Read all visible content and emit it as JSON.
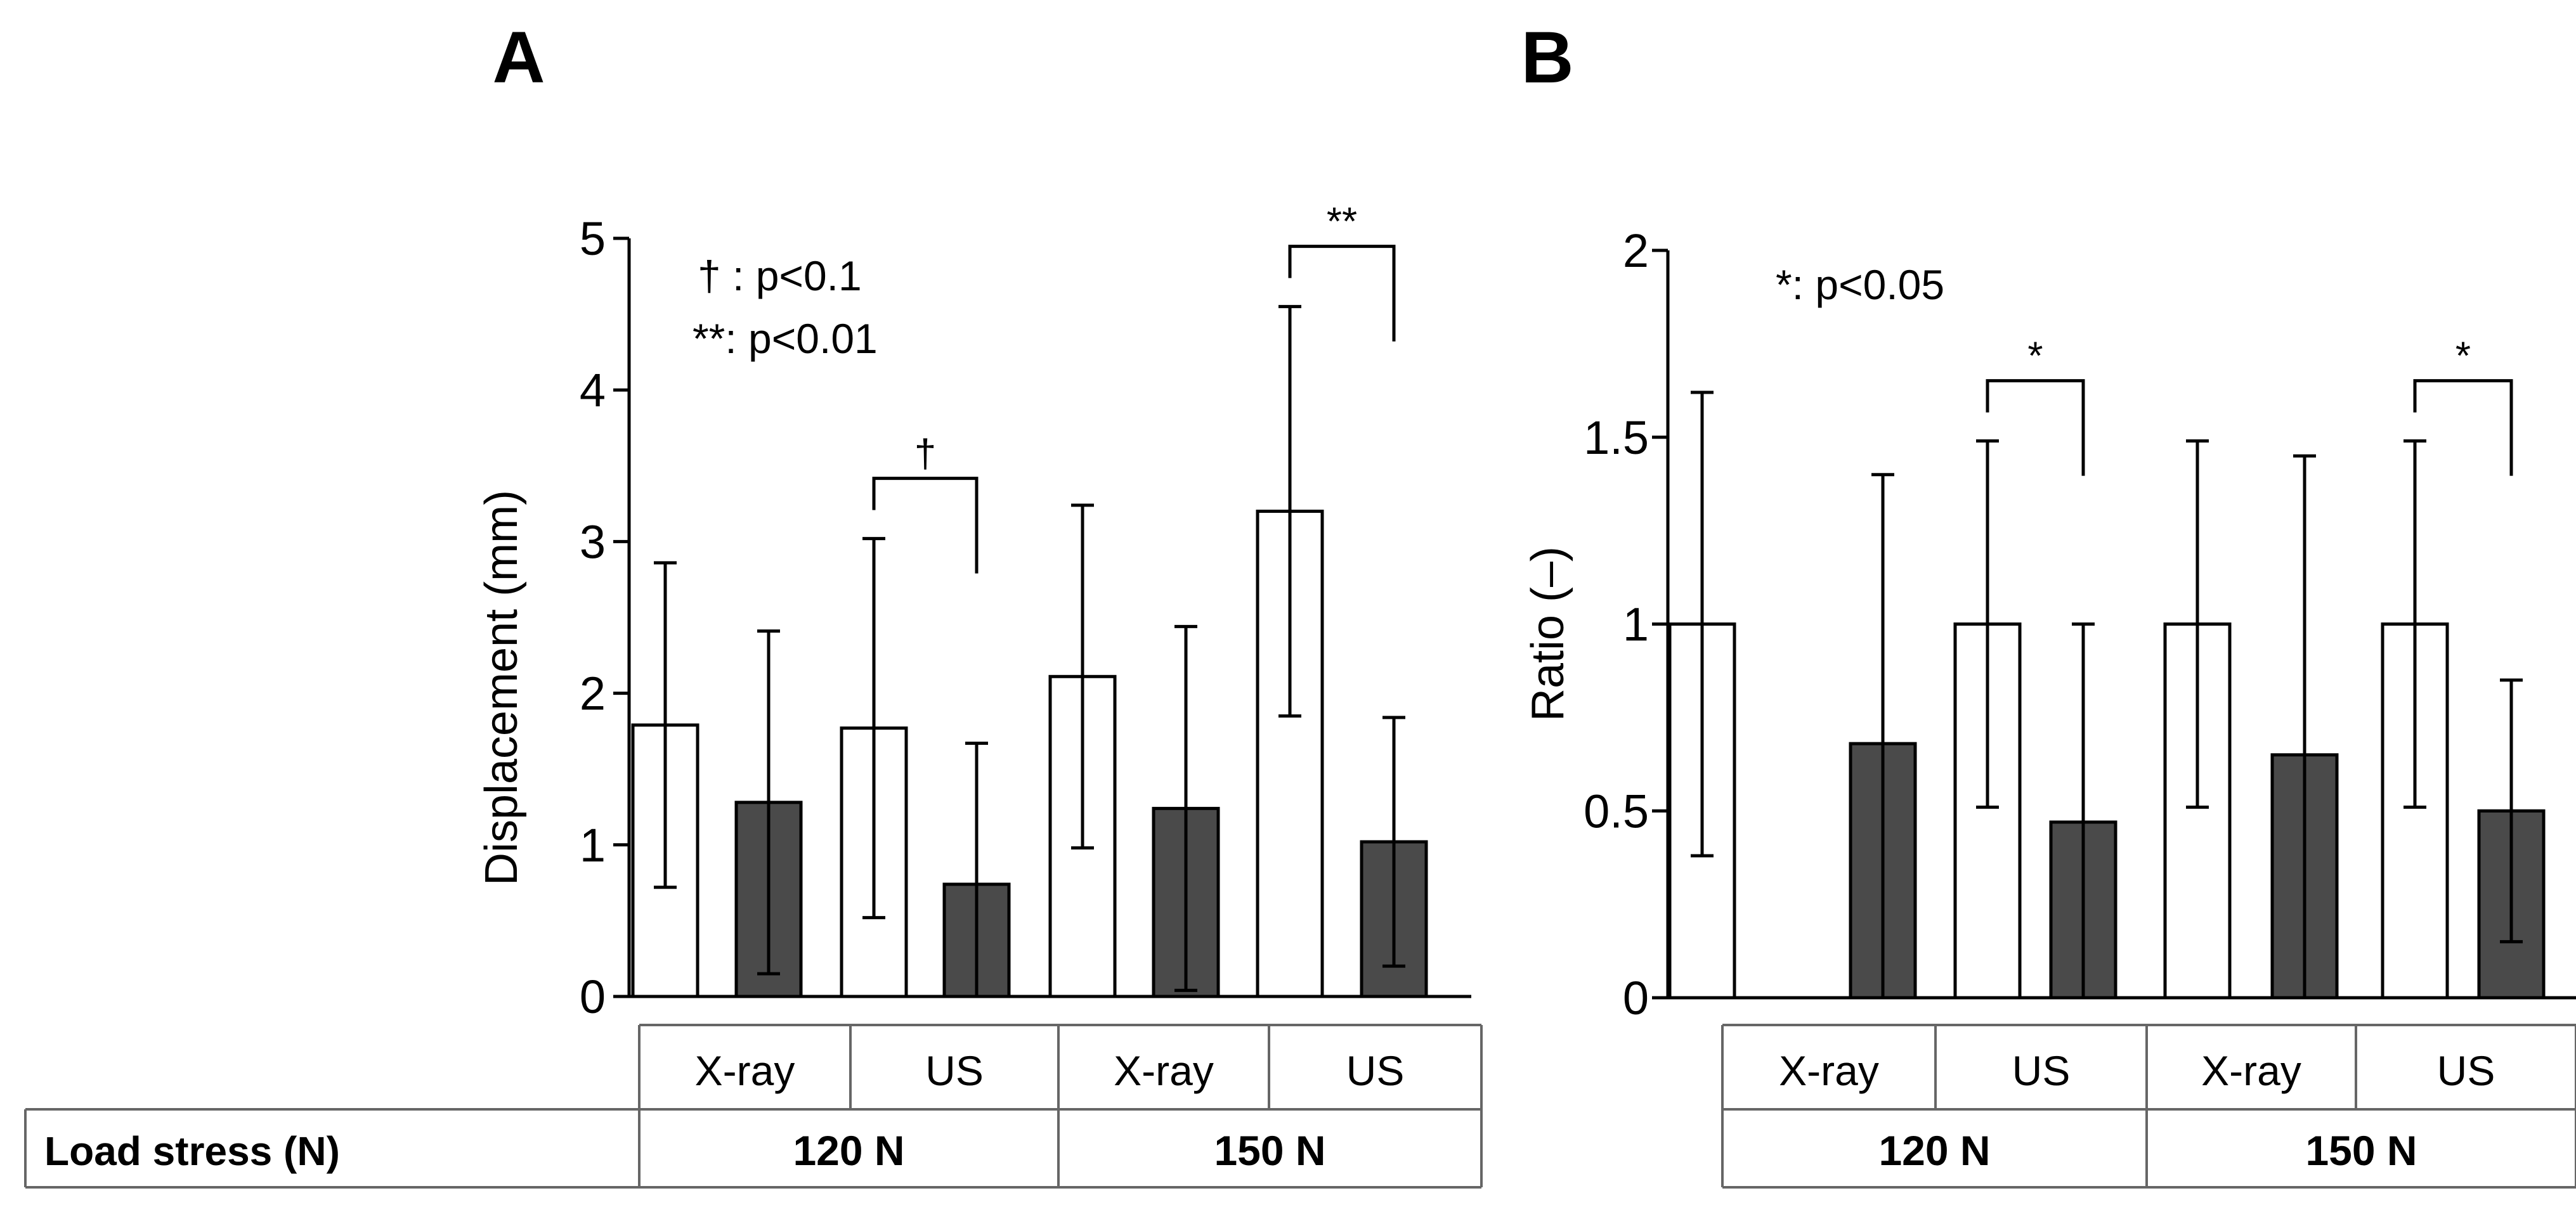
{
  "colors": {
    "ink": "#000000",
    "open_bar": "#ffffff",
    "filled_bar": "#4a4a4a",
    "table_line": "#666666"
  },
  "chart_data": [
    {
      "panel_label": "A",
      "type": "bar",
      "ylabel": "Displacement (mm)",
      "ylim": [
        0,
        5
      ],
      "yticks": [
        0,
        1,
        2,
        3,
        4,
        5
      ],
      "ytick_labels": [
        "0",
        "1",
        "2",
        "3",
        "4",
        "5"
      ],
      "grid": false,
      "legend_lines": [
        "† : p<0.1",
        "**: p<0.01"
      ],
      "categories": [
        {
          "method": "X-ray",
          "load": "120 N"
        },
        {
          "method": "US",
          "load": "120 N"
        },
        {
          "method": "X-ray",
          "load": "150 N"
        },
        {
          "method": "US",
          "load": "150 N"
        }
      ],
      "series": [
        {
          "name": "open",
          "style": "open",
          "values": [
            1.79,
            1.77,
            2.11,
            3.2
          ],
          "errors": [
            1.07,
            1.25,
            1.13,
            1.35
          ]
        },
        {
          "name": "filled",
          "style": "filled",
          "values": [
            1.28,
            0.74,
            1.24,
            1.02
          ],
          "errors": [
            1.13,
            0.93,
            1.2,
            0.82
          ]
        }
      ],
      "significance": [
        {
          "category_index": 1,
          "symbol": "†"
        },
        {
          "category_index": 3,
          "symbol": "**"
        }
      ],
      "table": {
        "method_labels": [
          "X-ray",
          "US",
          "X-ray",
          "US"
        ],
        "row_header": "Load stress (N)",
        "load_labels": [
          "120 N",
          "150 N"
        ]
      }
    },
    {
      "panel_label": "B",
      "type": "bar",
      "ylabel": "Ratio (–)",
      "ylim": [
        0,
        2
      ],
      "yticks": [
        0,
        0.5,
        1,
        1.5,
        2
      ],
      "ytick_labels": [
        "0",
        "0.5",
        "1",
        "1.5",
        "2"
      ],
      "grid": false,
      "legend_lines": [
        "*: p<0.05"
      ],
      "categories": [
        {
          "method": "X-ray",
          "load": "120 N"
        },
        {
          "method": "US",
          "load": "120 N"
        },
        {
          "method": "X-ray",
          "load": "150 N"
        },
        {
          "method": "US",
          "load": "150 N"
        }
      ],
      "series": [
        {
          "name": "open",
          "style": "open",
          "values": [
            1.0,
            1.0,
            1.0,
            1.0
          ],
          "errors": [
            0.62,
            0.49,
            0.49,
            0.49
          ]
        },
        {
          "name": "filled",
          "style": "filled",
          "values": [
            0.68,
            0.47,
            0.65,
            0.5
          ],
          "errors": [
            0.72,
            0.53,
            0.8,
            0.35
          ]
        }
      ],
      "significance": [
        {
          "category_index": 1,
          "symbol": "*"
        },
        {
          "category_index": 3,
          "symbol": "*"
        }
      ],
      "table": {
        "method_labels": [
          "X-ray",
          "US",
          "X-ray",
          "US"
        ],
        "row_header": null,
        "load_labels": [
          "120 N",
          "150 N"
        ]
      }
    }
  ]
}
